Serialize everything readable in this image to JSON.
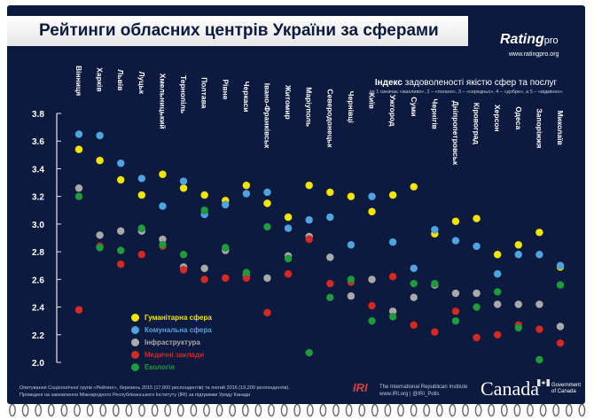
{
  "header": {
    "title": "Рейтинги обласних центрів України за сферами",
    "logo_text": "Rating",
    "logo_suffix": "pro",
    "logo_url": "www.ratingpro.org"
  },
  "subtitle": {
    "bold": "Індекс",
    "rest": " задоволеності якістю сфер та послуг",
    "note": "де 1 означає «жахливо», 2 – «погано», 3 – «середньо», 4 – «добре», а 5 – «відмінно»"
  },
  "footer": {
    "line1": "Опитування Соціологічної групи «Рейтинг», березень 2015 (17,600 респондентів) та лютий 2016 (19,200 респондентів).",
    "line2": "Проведені на замовлення Міжнародного Республіканського Інституту (IRI) за підтримки Уряду Канади",
    "iri_logo": "IRI",
    "iri_line1": "The International Republican Institute",
    "iri_line2": "www.IRI.org | @IRI_Polls",
    "canada_word": "Canada",
    "gov_line1": "Government",
    "gov_line2": "of Canada"
  },
  "colors": {
    "background": "#0b1a3e",
    "humanitarian": "#f2e600",
    "communal": "#4fa3e0",
    "infrastructure": "#a9a9a9",
    "medical": "#d42a24",
    "ecology": "#1f9a3c"
  },
  "chart_data": {
    "type": "scatter",
    "title": "",
    "ylim": [
      2.0,
      3.8
    ],
    "yticks": [
      "2.0",
      "2.2",
      "2.4",
      "2.6",
      "2.8",
      "3.0",
      "3.2",
      "3.4",
      "3.6",
      "3.8"
    ],
    "grid": false,
    "legend_position": "bottom-left",
    "categories": [
      "Вінниця",
      "Харків",
      "Львів",
      "Луцьк",
      "Хмельницький",
      "Тернопіль",
      "Полтава",
      "Рівне",
      "Черкаси",
      "Івано-Франківськ",
      "Житомир",
      "Маріуполь",
      "Северодонецьк",
      "Чернівці",
      "Київ",
      "Ужгород",
      "Суми",
      "Чернігів",
      "Дніпропетровськ",
      "Кіровоград",
      "Херсон",
      "Одеса",
      "Запоріжжя",
      "Миколаїв"
    ],
    "series": [
      {
        "name": "Гуманітарна сфера",
        "color": "#f2e600",
        "values": [
          3.54,
          3.46,
          3.32,
          3.21,
          3.36,
          3.26,
          3.21,
          3.17,
          3.28,
          3.15,
          3.05,
          3.28,
          3.23,
          3.2,
          3.09,
          3.21,
          3.27,
          2.93,
          3.02,
          3.04,
          2.78,
          2.85,
          2.94,
          2.69
        ]
      },
      {
        "name": "Комунальна сфера",
        "color": "#4fa3e0",
        "values": [
          3.65,
          3.64,
          3.44,
          3.33,
          3.13,
          3.31,
          3.07,
          3.14,
          3.22,
          3.23,
          2.97,
          3.03,
          3.05,
          2.85,
          3.2,
          2.87,
          2.68,
          2.96,
          2.88,
          2.84,
          2.64,
          2.78,
          2.78,
          2.7
        ]
      },
      {
        "name": "Інфраструктура",
        "color": "#a9a9a9",
        "values": [
          3.26,
          2.92,
          2.95,
          2.95,
          2.89,
          2.69,
          2.68,
          2.81,
          2.63,
          2.61,
          2.77,
          2.91,
          2.76,
          2.48,
          2.6,
          2.37,
          2.47,
          2.56,
          2.5,
          2.5,
          2.42,
          2.42,
          2.42,
          2.26
        ]
      },
      {
        "name": "Медичні заклади",
        "color": "#d42a24",
        "values": [
          2.38,
          2.84,
          2.71,
          2.78,
          2.84,
          2.67,
          2.6,
          2.61,
          2.61,
          2.36,
          2.64,
          2.89,
          2.57,
          2.58,
          2.41,
          2.62,
          2.27,
          2.22,
          2.37,
          2.18,
          2.2,
          2.27,
          2.24,
          2.14
        ]
      },
      {
        "name": "Екологія",
        "color": "#1f9a3c",
        "values": [
          3.2,
          2.83,
          2.81,
          2.97,
          2.85,
          2.78,
          3.1,
          2.83,
          2.65,
          2.98,
          2.75,
          2.07,
          2.47,
          2.6,
          2.3,
          2.33,
          2.57,
          2.57,
          2.3,
          2.4,
          2.51,
          2.25,
          2.02,
          2.56
        ]
      }
    ]
  }
}
